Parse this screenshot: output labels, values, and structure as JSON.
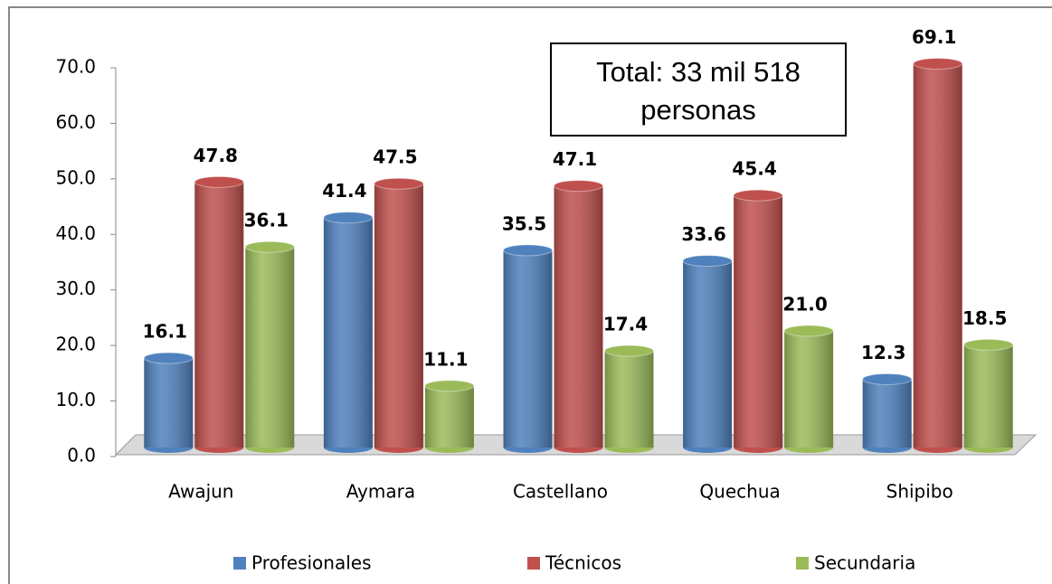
{
  "chart_data": {
    "type": "bar",
    "annotation": "Total: 33 mil 518 personas",
    "categories": [
      "Awajun",
      "Aymara",
      "Castellano",
      "Quechua",
      "Shipibo"
    ],
    "series": [
      {
        "name": "Profesionales",
        "color": "#4f81bd",
        "values": [
          16.1,
          41.4,
          35.5,
          33.6,
          12.3
        ],
        "value_labels": [
          "16.1",
          "41.4",
          "35.5",
          "33.6",
          "12.3"
        ]
      },
      {
        "name": "Técnicos",
        "color": "#c0504d",
        "values": [
          47.8,
          47.5,
          47.1,
          45.4,
          69.1
        ],
        "value_labels": [
          "47.8",
          "47.5",
          "47.1",
          "45.4",
          "69.1"
        ]
      },
      {
        "name": "Secundaria",
        "color": "#9bbb59",
        "values": [
          36.1,
          11.1,
          17.4,
          21.0,
          18.5
        ],
        "value_labels": [
          "36.1",
          "11.1",
          "17.4",
          "21.0",
          "18.5"
        ]
      }
    ],
    "ylim": [
      0,
      70
    ],
    "yticks": [
      {
        "value": 0,
        "label": "0.0"
      },
      {
        "value": 10,
        "label": "10.0"
      },
      {
        "value": 20,
        "label": "20.0"
      },
      {
        "value": 30,
        "label": "30.0"
      },
      {
        "value": 40,
        "label": "40.0"
      },
      {
        "value": 50,
        "label": "50.0"
      },
      {
        "value": 60,
        "label": "60.0"
      },
      {
        "value": 70,
        "label": "70.0"
      }
    ],
    "legend": "bottom"
  }
}
